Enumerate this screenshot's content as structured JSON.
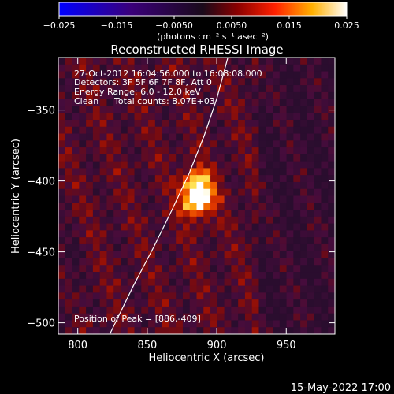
{
  "chart_data": {
    "type": "heatmap",
    "title": "Reconstructed RHESSI Image",
    "xlabel": "Heliocentric X (arcsec)",
    "ylabel": "Heliocentric Y (arcsec)",
    "xlim": [
      786,
      985
    ],
    "ylim": [
      -508,
      -313
    ],
    "x_ticks": [
      800,
      850,
      900,
      950
    ],
    "y_ticks": [
      -350,
      -400,
      -450,
      -500
    ],
    "x_tick_labels": [
      "800",
      "850",
      "900",
      "950"
    ],
    "y_tick_labels": [
      "−350",
      "−400",
      "−450",
      "−500"
    ],
    "colorbar": {
      "range": [
        -0.025,
        0.025
      ],
      "ticks": [
        -0.025,
        -0.015,
        -0.005,
        0.005,
        0.015,
        0.025
      ],
      "tick_labels": [
        "−0.025",
        "−0.015",
        "−0.0050",
        "0.0050",
        "0.015",
        "0.025"
      ],
      "units_label": "(photons cm⁻² s⁻¹ asec⁻²)"
    },
    "peak": {
      "x": 886,
      "y": -409,
      "value": 0.025
    },
    "limb": [
      [
        823,
        -508
      ],
      [
        840,
        -474
      ],
      [
        855,
        -446
      ],
      [
        868,
        -420
      ],
      [
        880,
        -395
      ],
      [
        891,
        -368
      ],
      [
        900,
        -342
      ],
      [
        908,
        -313
      ]
    ],
    "annotations": {
      "time_range": "27-Oct-2012 16:04:56.000 to 16:08:08.000",
      "detectors": "Detectors: 3F 5F 6F 7F 8F, Att 0",
      "energy": "Energy Range: 6.0 - 12.0 keV",
      "clean": "Clean",
      "total_counts": "Total counts: 8.07E+03",
      "peak_label": "Position of Peak = [886,-409]"
    }
  },
  "footer_date": "15-May-2022 17:00"
}
